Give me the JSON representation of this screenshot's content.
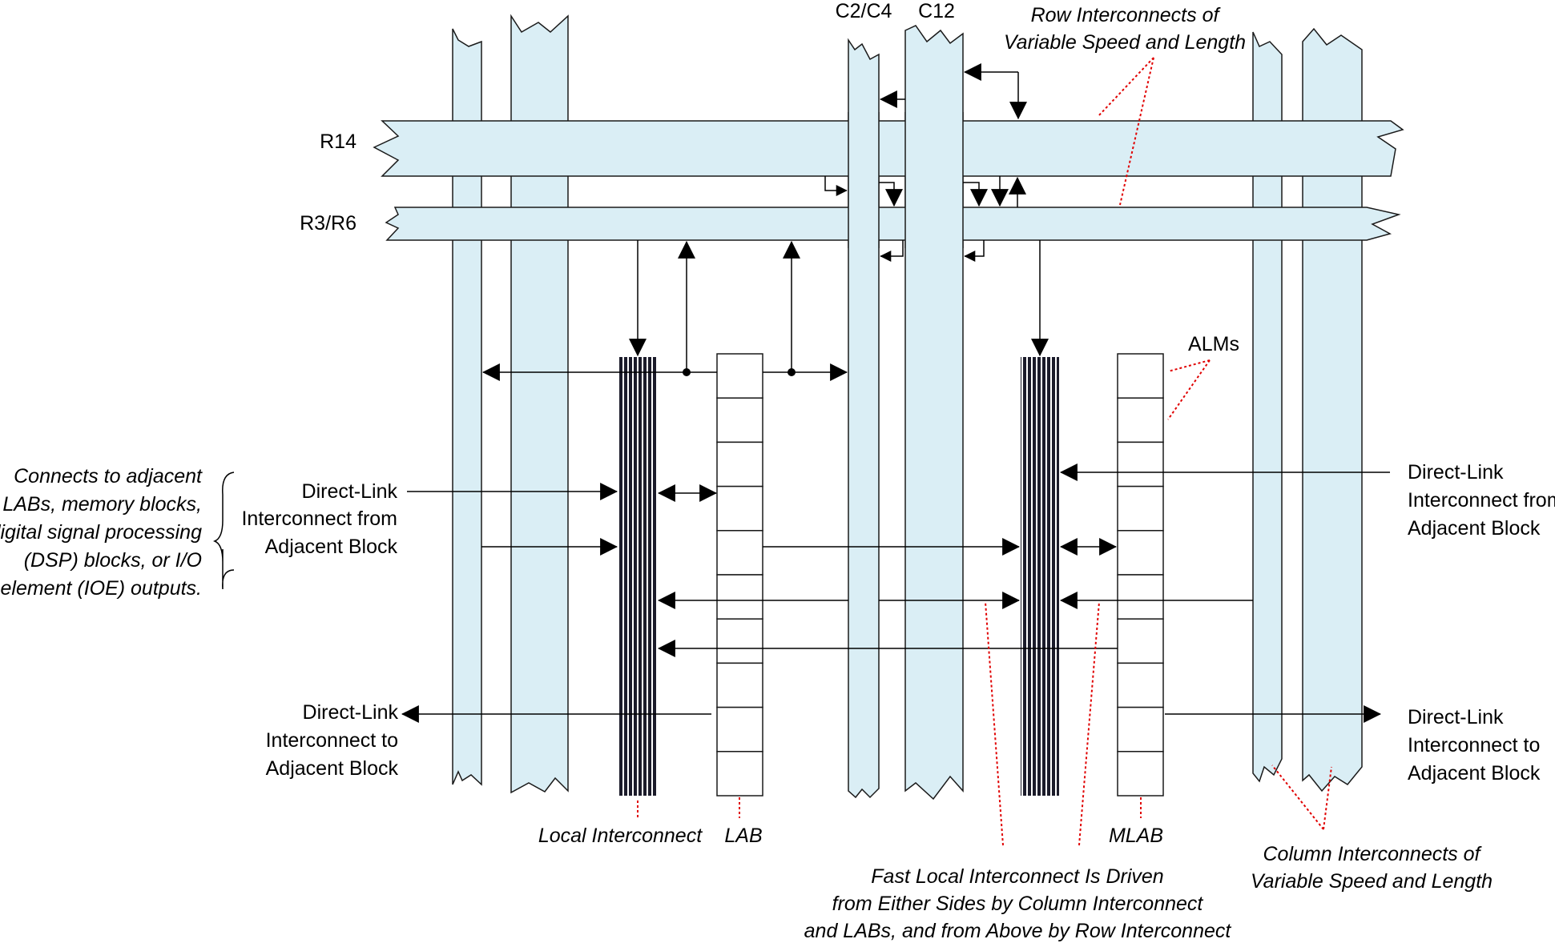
{
  "labels": {
    "r14": "R14",
    "r3r6": "R3/R6",
    "c2c4": "C2/C4",
    "c12": "C12",
    "alms": "ALMs",
    "row_interconnects_line1": "Row Interconnects of",
    "row_interconnects_line2": "Variable Speed and Length",
    "column_interconnects_line1": "Column Interconnects of",
    "column_interconnects_line2": "Variable Speed and Length",
    "local_interconnect": "Local Interconnect",
    "lab": "LAB",
    "mlab": "MLAB",
    "fast_local_line1": "Fast Local Interconnect Is Driven",
    "fast_local_line2": "from Either Sides by Column Interconnect",
    "fast_local_line3": "and LABs, and from Above by Row Interconnect",
    "direct_link_from_left_line1": "Direct-Link",
    "direct_link_from_left_line2": "Interconnect from",
    "direct_link_from_left_line3": "Adjacent Block",
    "direct_link_to_left_line1": "Direct-Link",
    "direct_link_to_left_line2": "Interconnect to",
    "direct_link_to_left_line3": "Adjacent Block",
    "direct_link_from_right_line1": "Direct-Link",
    "direct_link_from_right_line2": "Interconnect from",
    "direct_link_from_right_line3": "Adjacent Block",
    "direct_link_to_right_line1": "Direct-Link",
    "direct_link_to_right_line2": "Interconnect to",
    "direct_link_to_right_line3": "Adjacent Block",
    "connects_note_line1": "Connects to adjacent",
    "connects_note_line2": "LABs, memory blocks,",
    "connects_note_line3": "digital signal processing",
    "connects_note_line4": "(DSP) blocks, or I/O",
    "connects_note_line5": "element (IOE) outputs."
  },
  "colors": {
    "interconnect_fill": "#daeef5",
    "outline": "#1a1a1a",
    "annotation_line": "#e00000",
    "local_interconnect_fill": "#1b1b2a"
  },
  "lab_alm_count": 10,
  "mlab_alm_count": 10
}
